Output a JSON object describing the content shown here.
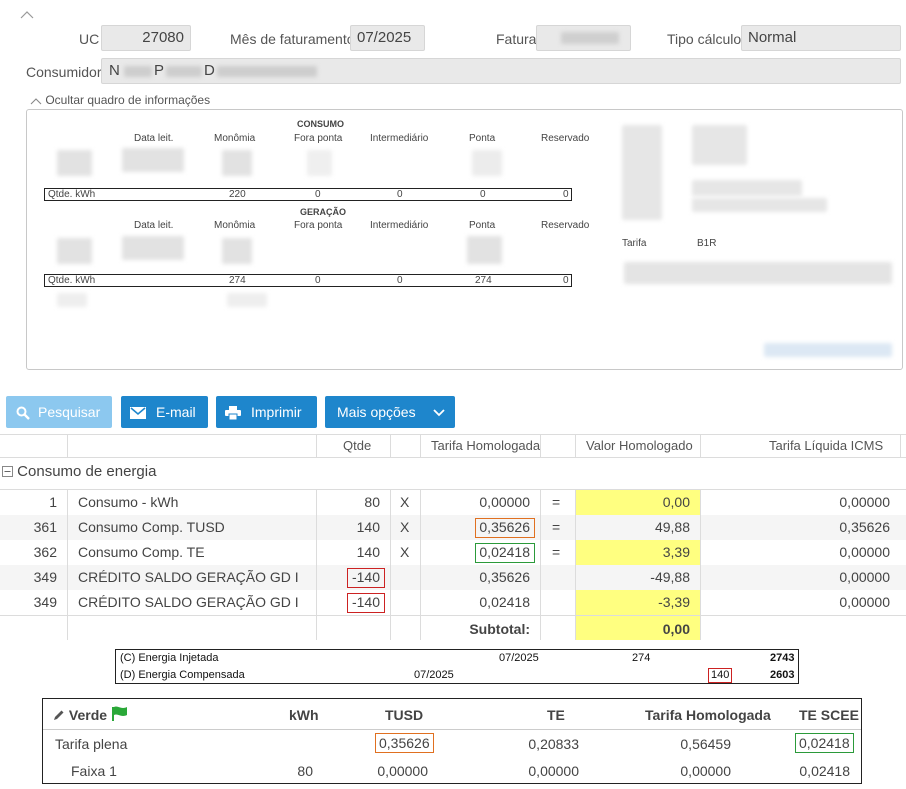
{
  "header": {
    "uc_label": "UC",
    "uc_value": "27080",
    "mes_label": "Mês de faturamento",
    "mes_value": "07/2025",
    "fatura_label": "Fatura",
    "tipo_label": "Tipo cálculo",
    "tipo_value": "Normal",
    "consumidor_label": "Consumidor",
    "consumidor_initials": [
      "N",
      "P",
      "D"
    ]
  },
  "info": {
    "toggle_label": "Ocultar quadro de informações",
    "consumo": {
      "title": "CONSUMO",
      "cols": [
        "Data leit.",
        "Monômia",
        "Fora ponta",
        "Intermediário",
        "Ponta",
        "Reservado"
      ],
      "qtde_label": "Qtde. kWh",
      "qtde": [
        "220",
        "0",
        "0",
        "0",
        "0"
      ]
    },
    "geracao": {
      "title": "GERAÇÃO",
      "cols": [
        "Data leit.",
        "Monômia",
        "Fora ponta",
        "Intermediário",
        "Ponta",
        "Reservado"
      ],
      "qtde_label": "Qtde. kWh",
      "qtde": [
        "274",
        "0",
        "0",
        "274",
        "0"
      ]
    },
    "tarifa_label": "Tarifa",
    "tarifa_value": "B1R"
  },
  "buttons": {
    "pesquisar": "Pesquisar",
    "email": "E-mail",
    "imprimir": "Imprimir",
    "mais": "Mais opções"
  },
  "table": {
    "headers": {
      "qtde": "Qtde",
      "tarifa": "Tarifa Homologada",
      "valor": "Valor Homologado",
      "liquida": "Tarifa Líquida ICMS"
    },
    "group": "Consumo de energia",
    "rows": [
      {
        "code": "1",
        "desc": "Consumo - kWh",
        "qtde": "80",
        "x": "X",
        "tarifa": "0,00000",
        "eq": "=",
        "valor": "0,00",
        "liquida": "0,00000"
      },
      {
        "code": "361",
        "desc": "Consumo Comp. TUSD",
        "qtde": "140",
        "x": "X",
        "tarifa": "0,35626",
        "eq": "=",
        "valor": "49,88",
        "liquida": "0,35626"
      },
      {
        "code": "362",
        "desc": "Consumo Comp. TE",
        "qtde": "140",
        "x": "X",
        "tarifa": "0,02418",
        "eq": "=",
        "valor": "3,39",
        "liquida": "0,00000"
      },
      {
        "code": "349",
        "desc": "CRÉDITO SALDO GERAÇÃO GD I",
        "qtde": "-140",
        "x": "",
        "tarifa": "0,35626",
        "eq": "",
        "valor": "-49,88",
        "liquida": "0,00000"
      },
      {
        "code": "349",
        "desc": "CRÉDITO SALDO GERAÇÃO GD I",
        "qtde": "-140",
        "x": "",
        "tarifa": "0,02418",
        "eq": "",
        "valor": "-3,39",
        "liquida": "0,00000"
      }
    ],
    "subtotal_label": "Subtotal:",
    "subtotal_value": "0,00"
  },
  "balance": [
    {
      "label": "(C) Energia Injetada",
      "period": "07/2025",
      "value": "274",
      "total": "2743"
    },
    {
      "label": "(D) Energia Compensada",
      "period": "07/2025",
      "value": "140",
      "total": "2603"
    }
  ],
  "tariff": {
    "name": "Verde",
    "headers": {
      "kwh": "kWh",
      "tusd": "TUSD",
      "te": "TE",
      "hom": "Tarifa Homologada",
      "scee": "TE SCEE"
    },
    "rows": [
      {
        "label": "Tarifa plena",
        "kwh": "",
        "tusd": "0,35626",
        "te": "0,20833",
        "hom": "0,56459",
        "scee": "0,02418"
      },
      {
        "label": "Faixa 1",
        "kwh": "80",
        "tusd": "0,00000",
        "te": "0,00000",
        "hom": "0,00000",
        "scee": "0,02418"
      }
    ],
    "accent": "#2aa838"
  }
}
